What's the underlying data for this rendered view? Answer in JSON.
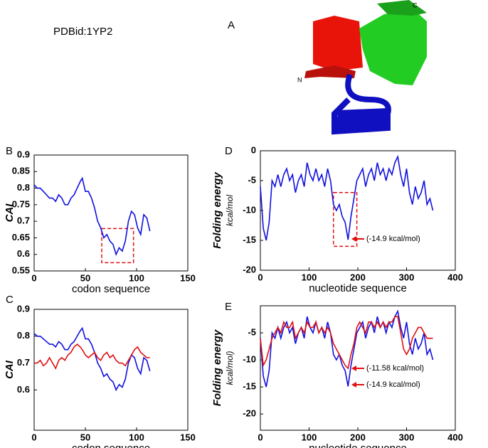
{
  "figure": {
    "id_label": "PDBid:1YP2",
    "panel_label": "A",
    "terminus_n": "N",
    "terminus_c": "C"
  },
  "chart_data": [
    {
      "type": "line",
      "panel": "B",
      "xlabel": "codon sequence",
      "ylabel": "CAI",
      "xlim": [
        0,
        150
      ],
      "xticks": [
        0,
        50,
        100,
        150
      ],
      "ylim": [
        0.55,
        0.9
      ],
      "yticks": [
        0.55,
        0.6,
        0.65,
        0.7,
        0.75,
        0.8,
        0.85,
        0.9
      ],
      "x": [
        0,
        3,
        6,
        9,
        12,
        15,
        18,
        21,
        24,
        27,
        30,
        33,
        36,
        39,
        42,
        45,
        47,
        50,
        53,
        56,
        59,
        62,
        65,
        68,
        71,
        74,
        77,
        80,
        83,
        86,
        89,
        92,
        95,
        98,
        101,
        104,
        107,
        110,
        113
      ],
      "series": [
        {
          "color": "#1010e0",
          "values": [
            0.81,
            0.8,
            0.8,
            0.79,
            0.78,
            0.77,
            0.77,
            0.76,
            0.78,
            0.77,
            0.75,
            0.75,
            0.77,
            0.78,
            0.8,
            0.82,
            0.83,
            0.79,
            0.79,
            0.77,
            0.74,
            0.7,
            0.68,
            0.65,
            0.66,
            0.64,
            0.63,
            0.6,
            0.62,
            0.61,
            0.64,
            0.7,
            0.73,
            0.72,
            0.68,
            0.66,
            0.72,
            0.71,
            0.67
          ]
        }
      ],
      "highlight": {
        "xlim": [
          66,
          97
        ],
        "ylim": [
          0.575,
          0.678
        ],
        "color": "#e01010"
      }
    },
    {
      "type": "line",
      "panel": "D",
      "xlabel": "nucleotide sequence",
      "ylabel": "Folding energy",
      "ylabel_unit": "kcal/mol",
      "xlim": [
        0,
        400
      ],
      "xticks": [
        0,
        100,
        200,
        300,
        400
      ],
      "ylim": [
        -20,
        0
      ],
      "yticks": [
        -20,
        -15,
        -10,
        -5,
        0
      ],
      "x": [
        0,
        6,
        12,
        18,
        24,
        30,
        36,
        42,
        48,
        54,
        60,
        66,
        72,
        78,
        84,
        90,
        96,
        102,
        108,
        114,
        120,
        126,
        132,
        138,
        144,
        150,
        156,
        162,
        168,
        174,
        180,
        186,
        192,
        198,
        204,
        210,
        216,
        222,
        228,
        234,
        240,
        246,
        252,
        258,
        264,
        270,
        276,
        282,
        288,
        294,
        300,
        306,
        312,
        318,
        324,
        330,
        336,
        342,
        348,
        354
      ],
      "series": [
        {
          "color": "#1010e0",
          "values": [
            -6,
            -13,
            -15,
            -12,
            -5,
            -6,
            -4,
            -6,
            -4,
            -3,
            -5,
            -4,
            -7,
            -5,
            -4,
            -6,
            -2,
            -4,
            -5,
            -3,
            -5,
            -4,
            -6,
            -3,
            -5,
            -9,
            -10,
            -9,
            -11,
            -12,
            -14.9,
            -11,
            -8,
            -5,
            -4,
            -3,
            -6,
            -4,
            -3,
            -5,
            -2,
            -4,
            -3,
            -5,
            -3,
            -4,
            -2,
            -1,
            -4,
            -6,
            -3,
            -7,
            -9,
            -6,
            -8,
            -7,
            -5,
            -9,
            -8,
            -10
          ]
        }
      ],
      "highlight": {
        "xlim": [
          150,
          198
        ],
        "ylim": [
          -16,
          -7
        ],
        "color": "#e01010"
      },
      "annotations": [
        {
          "text": "(-14.9 kcal/mol)",
          "color": "#e01010"
        }
      ]
    },
    {
      "type": "line",
      "panel": "C",
      "xlabel": "codon sequence",
      "ylabel": "CAI",
      "xlim": [
        0,
        150
      ],
      "xticks": [
        0,
        50,
        100,
        150
      ],
      "ylim": [
        0.45,
        0.9
      ],
      "yticks": [
        0.6,
        0.7,
        0.8,
        0.9
      ],
      "x": [
        0,
        3,
        6,
        9,
        12,
        15,
        18,
        21,
        24,
        27,
        30,
        33,
        36,
        39,
        42,
        45,
        47,
        50,
        53,
        56,
        59,
        62,
        65,
        68,
        71,
        74,
        77,
        80,
        83,
        86,
        89,
        92,
        95,
        98,
        101,
        104,
        107,
        110,
        113
      ],
      "series": [
        {
          "color": "#1010e0",
          "values": [
            0.81,
            0.8,
            0.8,
            0.79,
            0.78,
            0.77,
            0.77,
            0.76,
            0.78,
            0.77,
            0.75,
            0.75,
            0.77,
            0.78,
            0.8,
            0.82,
            0.83,
            0.79,
            0.79,
            0.77,
            0.74,
            0.7,
            0.68,
            0.65,
            0.66,
            0.64,
            0.63,
            0.6,
            0.62,
            0.61,
            0.64,
            0.7,
            0.73,
            0.72,
            0.68,
            0.66,
            0.72,
            0.71,
            0.67
          ]
        },
        {
          "color": "#e01010",
          "values": [
            0.7,
            0.7,
            0.71,
            0.69,
            0.7,
            0.72,
            0.7,
            0.68,
            0.71,
            0.72,
            0.71,
            0.73,
            0.74,
            0.76,
            0.77,
            0.76,
            0.75,
            0.73,
            0.72,
            0.73,
            0.74,
            0.72,
            0.71,
            0.73,
            0.74,
            0.72,
            0.73,
            0.71,
            0.7,
            0.7,
            0.69,
            0.71,
            0.73,
            0.75,
            0.76,
            0.74,
            0.73,
            0.72,
            0.72
          ]
        }
      ]
    },
    {
      "type": "line",
      "panel": "E",
      "xlabel": "nucleotide sequence",
      "ylabel": "Folding energy",
      "ylabel_unit": "kcal/mol)",
      "xlim": [
        0,
        400
      ],
      "xticks": [
        0,
        100,
        200,
        300,
        400
      ],
      "ylim": [
        -23,
        0
      ],
      "yticks": [
        -20,
        -15,
        -10,
        -5
      ],
      "x": [
        0,
        6,
        12,
        18,
        24,
        30,
        36,
        42,
        48,
        54,
        60,
        66,
        72,
        78,
        84,
        90,
        96,
        102,
        108,
        114,
        120,
        126,
        132,
        138,
        144,
        150,
        156,
        162,
        168,
        174,
        180,
        186,
        192,
        198,
        204,
        210,
        216,
        222,
        228,
        234,
        240,
        246,
        252,
        258,
        264,
        270,
        276,
        282,
        288,
        294,
        300,
        306,
        312,
        318,
        324,
        330,
        336,
        342,
        348,
        354
      ],
      "series": [
        {
          "color": "#1010e0",
          "values": [
            -6,
            -13,
            -15,
            -12,
            -5,
            -6,
            -4,
            -6,
            -4,
            -3,
            -5,
            -4,
            -7,
            -5,
            -4,
            -6,
            -2,
            -4,
            -5,
            -3,
            -5,
            -4,
            -6,
            -3,
            -5,
            -9,
            -10,
            -9,
            -11,
            -12,
            -14.9,
            -11,
            -8,
            -5,
            -4,
            -3,
            -6,
            -4,
            -3,
            -5,
            -2,
            -4,
            -3,
            -5,
            -3,
            -4,
            -2,
            -1,
            -4,
            -6,
            -3,
            -7,
            -9,
            -6,
            -8,
            -7,
            -5,
            -9,
            -8,
            -10
          ]
        },
        {
          "color": "#e01010",
          "values": [
            -6,
            -11,
            -10,
            -8,
            -6,
            -5,
            -4,
            -5,
            -3,
            -4,
            -4,
            -3,
            -6,
            -5,
            -4,
            -5,
            -3,
            -4,
            -4,
            -3,
            -5,
            -4,
            -5,
            -4,
            -5,
            -7,
            -8,
            -9,
            -10,
            -11,
            -11.58,
            -9,
            -7,
            -4,
            -3,
            -4,
            -5,
            -3,
            -3,
            -4,
            -3,
            -4,
            -3,
            -4,
            -3,
            -3,
            -2,
            -2,
            -5,
            -8,
            -9,
            -8,
            -6,
            -5,
            -4,
            -4,
            -5,
            -6,
            -6,
            -6
          ]
        }
      ],
      "annotations": [
        {
          "text": "(-11.58 kcal/mol)",
          "color": "#e01010"
        },
        {
          "text": "(-14.9 kcal/mol)",
          "color": "#e01010"
        }
      ]
    }
  ]
}
